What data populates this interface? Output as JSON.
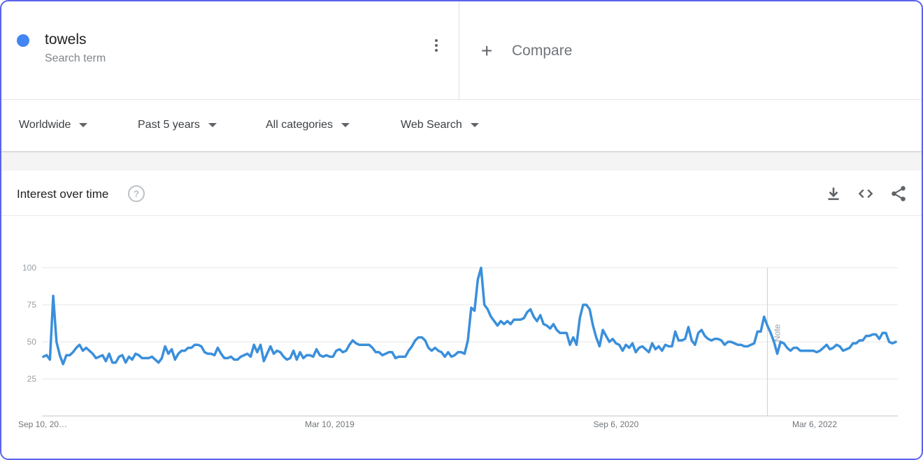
{
  "term": {
    "name": "towels",
    "type": "Search term",
    "color": "#4285f4"
  },
  "compare": {
    "label": "Compare",
    "icon": "plus-icon"
  },
  "filters": [
    {
      "label": "Worldwide"
    },
    {
      "label": "Past 5 years"
    },
    {
      "label": "All categories"
    },
    {
      "label": "Web Search"
    }
  ],
  "card": {
    "title": "Interest over time",
    "help_icon": "help-circle-icon",
    "actions": [
      "download-icon",
      "embed-code-icon",
      "share-icon"
    ]
  },
  "chart_data": {
    "type": "line",
    "ylim": [
      0,
      100
    ],
    "yticks": [
      25,
      50,
      75,
      100
    ],
    "xtick_labels": [
      "Sep 10, 20…",
      "Mar 10, 2019",
      "Sep 6, 2020",
      "Mar 6, 2022"
    ],
    "note_label": "Note",
    "line_color": "#3a8fdb",
    "grid": true,
    "series": [
      {
        "values": [
          40,
          41,
          38,
          81,
          50,
          41,
          35,
          41,
          41,
          43,
          46,
          48,
          44,
          46,
          44,
          42,
          39,
          40,
          41,
          37,
          42,
          36,
          36,
          40,
          41,
          36,
          40,
          38,
          42,
          41,
          39,
          39,
          39,
          40,
          38,
          36,
          39,
          47,
          42,
          45,
          38,
          42,
          44,
          44,
          46,
          46,
          48,
          48,
          47,
          43,
          42,
          42,
          41,
          46,
          42,
          39,
          39,
          40,
          38,
          38,
          40,
          41,
          42,
          40,
          48,
          43,
          48,
          37,
          42,
          47,
          42,
          44,
          43,
          40,
          38,
          39,
          44,
          38,
          43,
          39,
          41,
          41,
          40,
          45,
          41,
          40,
          41,
          40,
          40,
          44,
          45,
          43,
          44,
          48,
          51,
          49,
          48,
          48,
          48,
          48,
          46,
          43,
          43,
          41,
          42,
          43,
          43,
          39,
          40,
          40,
          40,
          44,
          47,
          51,
          53,
          53,
          51,
          46,
          44,
          46,
          44,
          43,
          40,
          43,
          40,
          41,
          43,
          43,
          42,
          51,
          73,
          71,
          92,
          100,
          75,
          72,
          67,
          64,
          61,
          64,
          62,
          64,
          62,
          65,
          65,
          65,
          66,
          70,
          72,
          67,
          64,
          68,
          62,
          61,
          59,
          62,
          58,
          56,
          56,
          56,
          48,
          53,
          48,
          66,
          75,
          75,
          72,
          61,
          53,
          47,
          58,
          54,
          50,
          52,
          49,
          48,
          44,
          48,
          46,
          49,
          43,
          46,
          47,
          45,
          43,
          49,
          45,
          47,
          44,
          48,
          47,
          47,
          57,
          51,
          51,
          52,
          60,
          51,
          48,
          56,
          58,
          54,
          52,
          51,
          52,
          52,
          51,
          48,
          50,
          50,
          49,
          48,
          48,
          47,
          47,
          48,
          49,
          57,
          57,
          67,
          61,
          56,
          50,
          42,
          50,
          49,
          46,
          44,
          46,
          46,
          44,
          44,
          44,
          44,
          44,
          43,
          44,
          46,
          48,
          45,
          46,
          48,
          47,
          44,
          45,
          46,
          49,
          49,
          51,
          51,
          54,
          54,
          55,
          55,
          52,
          56,
          56,
          50,
          49,
          50
        ]
      }
    ]
  }
}
